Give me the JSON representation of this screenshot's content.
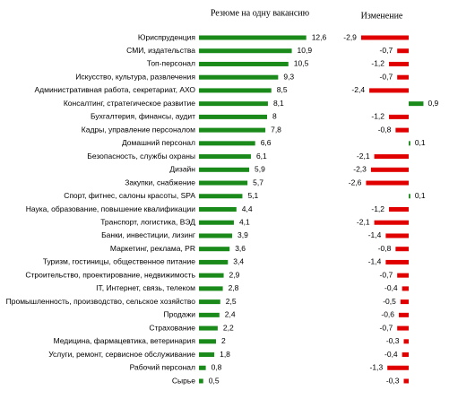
{
  "chart_data": [
    {
      "type": "bar",
      "orientation": "horizontal",
      "title": "Резюме на одну вакансию",
      "color": "#1a8a1a",
      "categories": [
        "Юриспруденция",
        "СМИ, издательства",
        "Топ-персонал",
        "Искусство, культура, развлечения",
        "Административная работа, секретариат, АХО",
        "Консалтинг, стратегическое развитие",
        "Бухгалтерия, финансы, аудит",
        "Кадры, управление персоналом",
        "Домашний персонал",
        "Безопасность, службы охраны",
        "Дизайн",
        "Закупки, снабжение",
        "Спорт, фитнес, салоны красоты, SPA",
        "Наука, образование, повышение квалификации",
        "Транспорт, логистика, ВЭД",
        "Банки, инвестиции, лизинг",
        "Маркетинг, реклама, PR",
        "Туризм, гостиницы, общественное питание",
        "Строительство, проектирование, недвижимость",
        "IT, Интернет, связь, телеком",
        "Промышленность, производство, сельское хозяйство",
        "Продажи",
        "Страхование",
        "Медицина, фармацевтика, ветеринария",
        "Услуги, ремонт, сервисное обслуживание",
        "Рабочий персонал",
        "Сырье"
      ],
      "values": [
        12.6,
        10.9,
        10.5,
        9.3,
        8.5,
        8.1,
        8,
        7.8,
        6.6,
        6.1,
        5.9,
        5.7,
        5.1,
        4.4,
        4.1,
        3.9,
        3.6,
        3.4,
        2.9,
        2.8,
        2.5,
        2.4,
        2.2,
        2,
        1.8,
        0.8,
        0.5
      ],
      "value_labels": [
        "12,6",
        "10,9",
        "10,5",
        "9,3",
        "8,5",
        "8,1",
        "8",
        "7,8",
        "6,6",
        "6,1",
        "5,9",
        "5,7",
        "5,1",
        "4,4",
        "4,1",
        "3,9",
        "3,6",
        "3,4",
        "2,9",
        "2,8",
        "2,5",
        "2,4",
        "2,2",
        "2",
        "1,8",
        "0,8",
        "0,5"
      ]
    },
    {
      "type": "bar",
      "orientation": "horizontal",
      "title": "Изменение",
      "color": "#e00000",
      "positive_color": "#1a8a1a",
      "values": [
        -2.9,
        -0.7,
        -1.2,
        -0.7,
        -2.4,
        0.9,
        -1.2,
        -0.8,
        0.1,
        -2.1,
        -2.3,
        -2.6,
        0.1,
        -1.2,
        -2.1,
        -1.4,
        -0.8,
        -1.4,
        -0.7,
        -0.4,
        -0.5,
        -0.6,
        -0.7,
        -0.3,
        -0.4,
        -1.3,
        -0.3
      ],
      "value_labels": [
        "-2,9",
        "-0,7",
        "-1,2",
        "-0,7",
        "-2,4",
        "0,9",
        "-1,2",
        "-0,8",
        "0,1",
        "-2,1",
        "-2,3",
        "-2,6",
        "0,1",
        "-1,2",
        "-2,1",
        "-1,4",
        "-0,8",
        "-1,4",
        "-0,7",
        "-0,4",
        "-0,5",
        "-0,6",
        "-0,7",
        "-0,3",
        "-0,4",
        "-1,3",
        "-0,3"
      ]
    }
  ]
}
